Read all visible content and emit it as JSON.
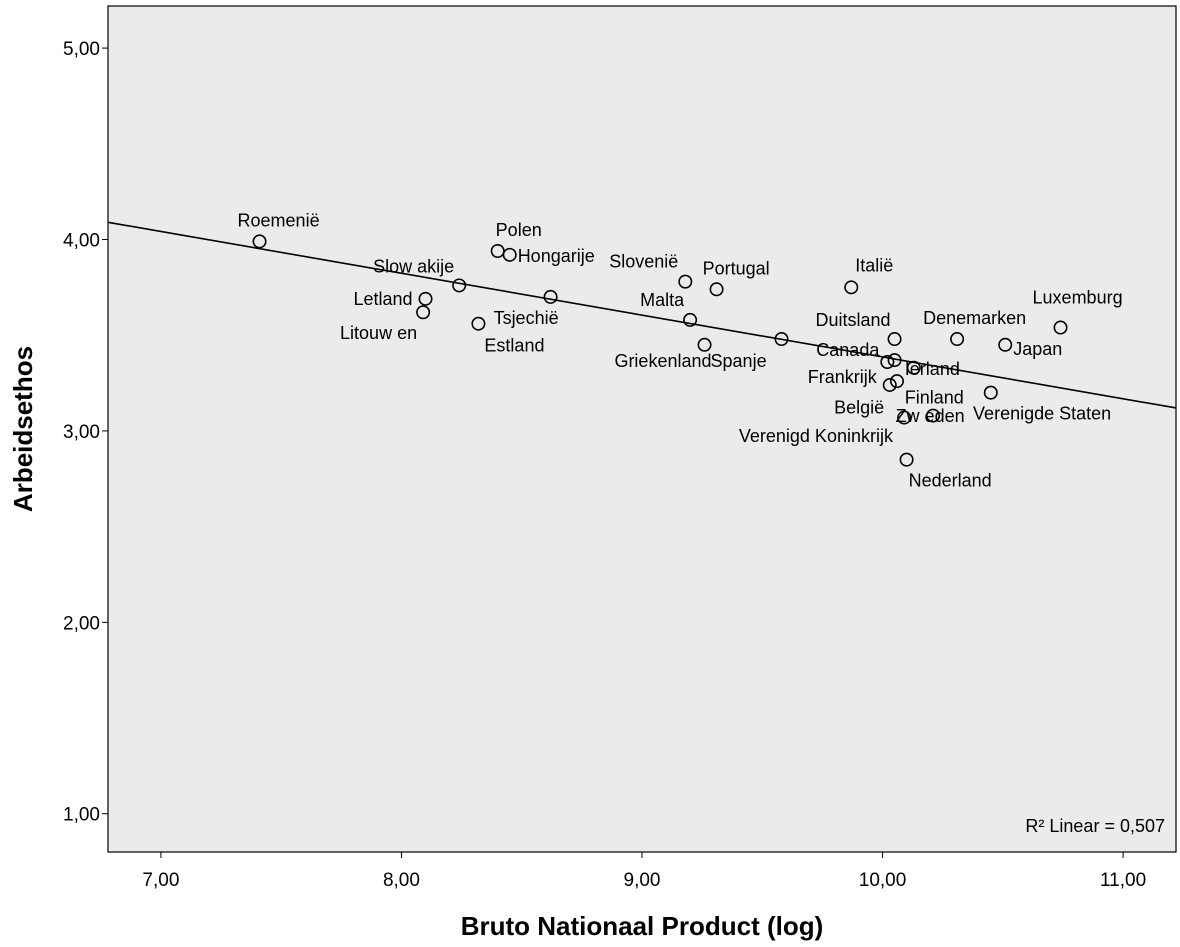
{
  "chart_data": {
    "type": "scatter",
    "xlabel": "Bruto Nationaal Product (log)",
    "ylabel": "Arbeidsethos",
    "xlim": [
      6.78,
      11.22
    ],
    "ylim": [
      0.8,
      5.22
    ],
    "xticks": [
      7,
      8,
      9,
      10,
      11
    ],
    "yticks": [
      1,
      2,
      3,
      4,
      5
    ],
    "xtick_labels": [
      "7,00",
      "8,00",
      "9,00",
      "10,00",
      "11,00"
    ],
    "ytick_labels": [
      "1,00",
      "2,00",
      "3,00",
      "4,00",
      "5,00"
    ],
    "grid": false,
    "background": "#ebebeb",
    "fit_line": {
      "label": "Linear",
      "r2_text": "R² Linear = 0,507",
      "x": [
        6.78,
        11.22
      ],
      "y": [
        4.09,
        3.12
      ]
    },
    "points": [
      {
        "name": "Roemenië",
        "x": 7.41,
        "y": 3.99
      },
      {
        "name": "Polen",
        "x": 8.4,
        "y": 3.94
      },
      {
        "name": "Hongarije",
        "x": 8.45,
        "y": 3.92
      },
      {
        "name": "Slow akije",
        "x": 8.24,
        "y": 3.76
      },
      {
        "name": "Letland",
        "x": 8.1,
        "y": 3.69
      },
      {
        "name": "Litouw en",
        "x": 8.09,
        "y": 3.62
      },
      {
        "name": "Estland",
        "x": 8.32,
        "y": 3.56
      },
      {
        "name": "Tsjechië",
        "x": 8.62,
        "y": 3.7
      },
      {
        "name": "Slovenië",
        "x": 9.18,
        "y": 3.78
      },
      {
        "name": "Portugal",
        "x": 9.31,
        "y": 3.74
      },
      {
        "name": "Malta",
        "x": 9.2,
        "y": 3.58
      },
      {
        "name": "Spanje",
        "x": 9.26,
        "y": 3.45
      },
      {
        "name": "Griekenland",
        "x": 9.58,
        "y": 3.48
      },
      {
        "name": "Italië",
        "x": 9.87,
        "y": 3.75
      },
      {
        "name": "Duitsland",
        "x": 10.05,
        "y": 3.48
      },
      {
        "name": "Denemarken",
        "x": 10.31,
        "y": 3.48
      },
      {
        "name": "Luxemburg",
        "x": 10.74,
        "y": 3.54
      },
      {
        "name": "Japan",
        "x": 10.51,
        "y": 3.45
      },
      {
        "name": "Canada",
        "x": 10.02,
        "y": 3.36
      },
      {
        "name": "Ierland",
        "x": 10.13,
        "y": 3.33
      },
      {
        "name": "Frankrijk",
        "x": 10.03,
        "y": 3.24
      },
      {
        "name": "Finland",
        "x": 10.45,
        "y": 3.2
      },
      {
        "name": "België",
        "x": 10.09,
        "y": 3.07
      },
      {
        "name": "Verenigde Staten",
        "x": 10.21,
        "y": 3.08
      },
      {
        "name": "Verenigd Koninkrijk",
        "x": 10.06,
        "y": 3.26
      },
      {
        "name": "Zw eden",
        "x": 10.05,
        "y": 3.37
      },
      {
        "name": "Nederland",
        "x": 10.1,
        "y": 2.85
      }
    ]
  }
}
